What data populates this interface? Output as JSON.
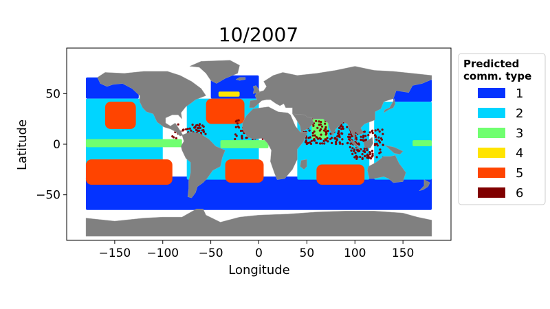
{
  "chart_data": {
    "type": "heatmap",
    "title": "10/2007",
    "xlabel": "Longitude",
    "ylabel": "Latitude",
    "xlim": [
      -200,
      200
    ],
    "ylim": [
      -95,
      95
    ],
    "x_ticks": [
      {
        "value": -150,
        "label": "−150"
      },
      {
        "value": -100,
        "label": "−100"
      },
      {
        "value": -50,
        "label": "−50"
      },
      {
        "value": 0,
        "label": "0"
      },
      {
        "value": 50,
        "label": "50"
      },
      {
        "value": 100,
        "label": "100"
      },
      {
        "value": 150,
        "label": "150"
      }
    ],
    "y_ticks": [
      {
        "value": 50,
        "label": "50"
      },
      {
        "value": 0,
        "label": "0"
      },
      {
        "value": -50,
        "label": "−50"
      }
    ],
    "land_color": "#808080",
    "legend": {
      "title_line1": "Predicted",
      "title_line2": "comm. type",
      "placement": "outside-right",
      "items": [
        {
          "label": "1",
          "color": "#0433ff"
        },
        {
          "label": "2",
          "color": "#00d5ff"
        },
        {
          "label": "3",
          "color": "#70ff70"
        },
        {
          "label": "4",
          "color": "#ffe400"
        },
        {
          "label": "5",
          "color": "#ff4400"
        },
        {
          "label": "6",
          "color": "#800000"
        }
      ]
    },
    "regions": [
      {
        "name": "southern-ocean-band",
        "type": 1,
        "lon": [
          -180,
          180
        ],
        "lat": [
          -65,
          -32
        ]
      },
      {
        "name": "north-pacific-high",
        "type": 1,
        "lon": [
          -180,
          -125
        ],
        "lat": [
          45,
          66
        ]
      },
      {
        "name": "north-atlantic-high",
        "type": 1,
        "lon": [
          -50,
          0
        ],
        "lat": [
          45,
          68
        ]
      },
      {
        "name": "nw-pacific-high",
        "type": 1,
        "lon": [
          140,
          180
        ],
        "lat": [
          42,
          64
        ]
      },
      {
        "name": "pacific-subtropics",
        "type": 2,
        "lon": [
          -180,
          -100
        ],
        "lat": [
          -35,
          45
        ]
      },
      {
        "name": "atlantic-subtropics",
        "type": 2,
        "lon": [
          -75,
          0
        ],
        "lat": [
          -35,
          45
        ]
      },
      {
        "name": "indian-ocean",
        "type": 2,
        "lon": [
          40,
          115
        ],
        "lat": [
          -35,
          25
        ]
      },
      {
        "name": "west-pacific",
        "type": 2,
        "lon": [
          120,
          180
        ],
        "lat": [
          -35,
          42
        ]
      },
      {
        "name": "pacific-equatorial",
        "type": 3,
        "lon": [
          -180,
          -80
        ],
        "lat": [
          -3,
          5
        ]
      },
      {
        "name": "atlantic-equatorial",
        "type": 3,
        "lon": [
          -40,
          10
        ],
        "lat": [
          -4,
          4
        ]
      },
      {
        "name": "arabian-sea",
        "type": 3,
        "lon": [
          55,
          72
        ],
        "lat": [
          5,
          25
        ]
      },
      {
        "name": "west-pacific-equatorial",
        "type": 3,
        "lon": [
          160,
          180
        ],
        "lat": [
          -2,
          4
        ]
      },
      {
        "name": "north-atlantic-patch",
        "type": 4,
        "lon": [
          -42,
          -20
        ],
        "lat": [
          47,
          52
        ]
      },
      {
        "name": "north-pacific-gyre",
        "type": 5,
        "lon": [
          -160,
          -128
        ],
        "lat": [
          15,
          42
        ]
      },
      {
        "name": "south-pacific-gyre",
        "type": 5,
        "lon": [
          -180,
          -90
        ],
        "lat": [
          -40,
          -15
        ]
      },
      {
        "name": "south-atlantic-gyre",
        "type": 5,
        "lon": [
          -35,
          5
        ],
        "lat": [
          -38,
          -15
        ]
      },
      {
        "name": "north-atlantic-gyre",
        "type": 5,
        "lon": [
          -55,
          -15
        ],
        "lat": [
          20,
          45
        ]
      },
      {
        "name": "south-indian-gyre",
        "type": 5,
        "lon": [
          60,
          110
        ],
        "lat": [
          -40,
          -20
        ]
      },
      {
        "name": "coastal-arabian-sea",
        "type": 6,
        "lon": [
          45,
          100
        ],
        "lat": [
          0,
          30
        ]
      },
      {
        "name": "indonesian-seas",
        "type": 6,
        "lon": [
          95,
          130
        ],
        "lat": [
          -15,
          15
        ]
      },
      {
        "name": "west-africa-coast",
        "type": 6,
        "lon": [
          -25,
          10
        ],
        "lat": [
          5,
          25
        ]
      },
      {
        "name": "caribbean-coast",
        "type": 6,
        "lon": [
          -90,
          -55
        ],
        "lat": [
          5,
          20
        ]
      }
    ]
  }
}
